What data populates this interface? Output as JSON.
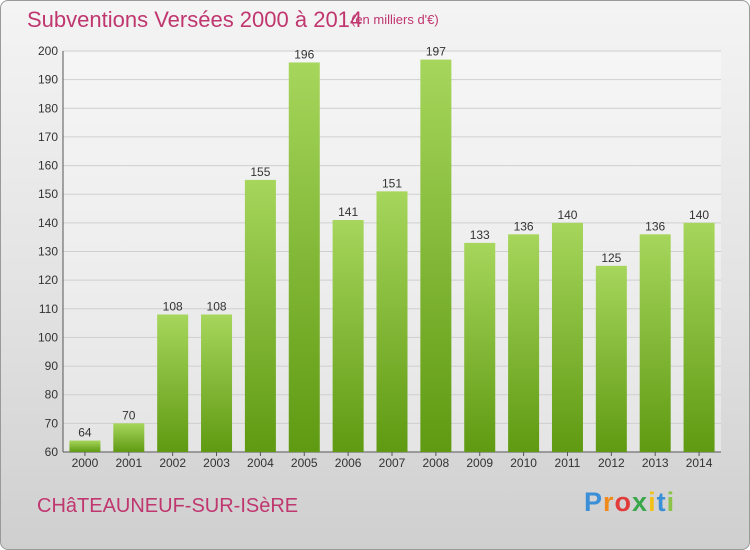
{
  "header": {
    "title": "Subventions Versées 2000 à 2014",
    "unit_note": "(en milliers d'€)"
  },
  "footer": {
    "commune_name": "CHâTEAUNEUF-SUR-ISèRE",
    "logo_text": "Proxiti",
    "logo_letters": [
      {
        "char": "P",
        "color": "#3a8fd6"
      },
      {
        "char": "r",
        "color": "#f08a1c"
      },
      {
        "char": "o",
        "color": "#e23b3b"
      },
      {
        "char": "x",
        "color": "#3aa84a"
      },
      {
        "char": "i",
        "color": "#f2c018"
      },
      {
        "char": "t",
        "color": "#3a8fd6"
      },
      {
        "char": "i",
        "color": "#8bc34a"
      }
    ]
  },
  "colors": {
    "accent": "#c0366f",
    "bar_top": "#a6d65c",
    "bar_bottom": "#5f9a12",
    "grid": "#cfcfcf"
  },
  "chart_data": {
    "type": "bar",
    "categories": [
      "2000",
      "2001",
      "2002",
      "2003",
      "2004",
      "2005",
      "2006",
      "2007",
      "2008",
      "2009",
      "2010",
      "2011",
      "2012",
      "2013",
      "2014"
    ],
    "values": [
      64,
      70,
      108,
      108,
      155,
      196,
      141,
      151,
      197,
      133,
      136,
      140,
      125,
      136,
      140
    ],
    "title": "Subventions Versées 2000 à 2014",
    "subtitle": "(en milliers d'€)",
    "xlabel": "",
    "ylabel": "",
    "ylim": [
      60,
      200
    ],
    "yticks": [
      60,
      70,
      80,
      90,
      100,
      110,
      120,
      130,
      140,
      150,
      160,
      170,
      180,
      190,
      200
    ],
    "grid": true,
    "legend": "none"
  }
}
